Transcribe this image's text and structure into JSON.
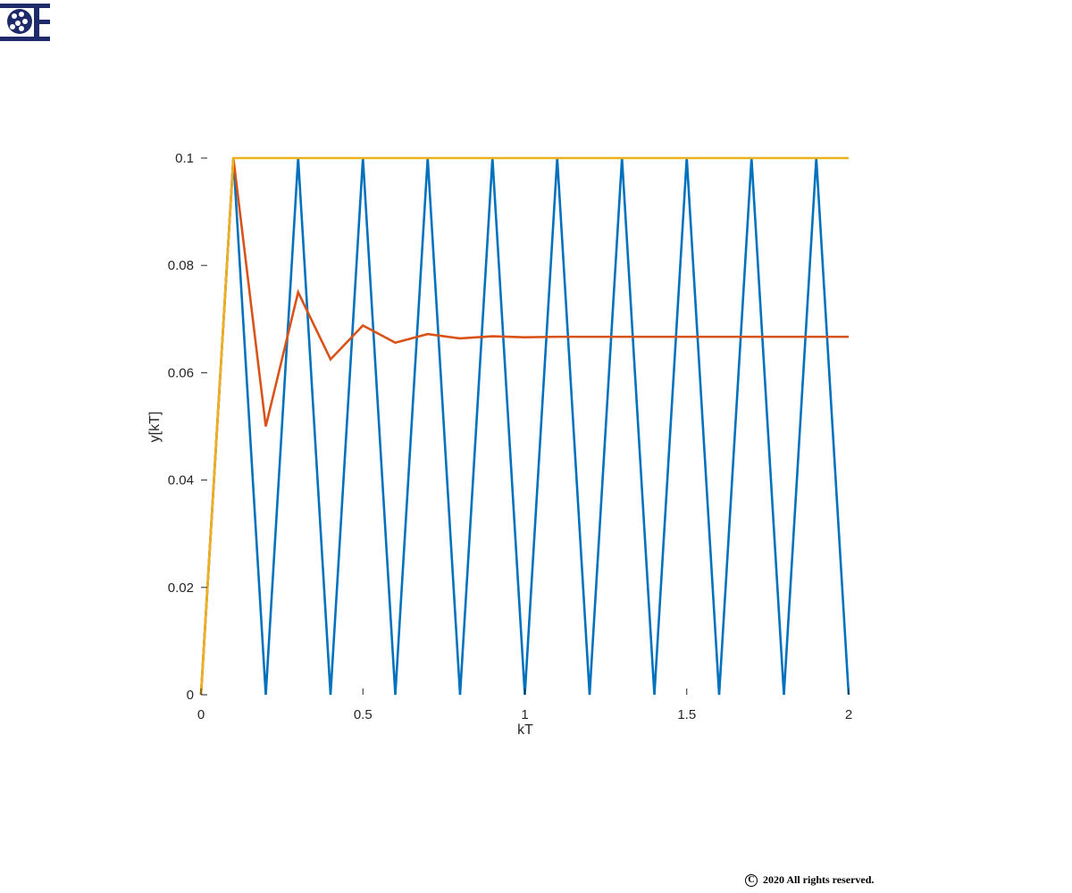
{
  "logo": {
    "name": "logo-icon",
    "color": "#1f2a6b"
  },
  "footer": {
    "icon": "copyright-icon",
    "icon_glyph": "C",
    "text": "2020 All rights reserved."
  },
  "chart_data": {
    "type": "line",
    "xlabel": "kT",
    "ylabel": "y[kT]",
    "xlim": [
      0,
      2
    ],
    "ylim": [
      0,
      0.1
    ],
    "x_ticks": [
      0,
      0.5,
      1,
      1.5,
      2
    ],
    "x_tick_labels": [
      "0",
      "0.5",
      "1",
      "1.5",
      "2"
    ],
    "y_ticks": [
      0,
      0.02,
      0.04,
      0.06,
      0.08,
      0.1
    ],
    "y_tick_labels": [
      "0",
      "0.02",
      "0.04",
      "0.06",
      "0.08",
      "0.1"
    ],
    "grid": false,
    "box": false,
    "series": [
      {
        "color": "#0072BD",
        "x": [
          0,
          0.1,
          0.2,
          0.3,
          0.4,
          0.5,
          0.6,
          0.7,
          0.8,
          0.9,
          1.0,
          1.1,
          1.2,
          1.3,
          1.4,
          1.5,
          1.6,
          1.7,
          1.8,
          1.9,
          2.0
        ],
        "y": [
          0,
          0.1,
          0,
          0.1,
          0,
          0.1,
          0,
          0.1,
          0,
          0.1,
          0,
          0.1,
          0,
          0.1,
          0,
          0.1,
          0,
          0.1,
          0,
          0.1,
          0
        ]
      },
      {
        "color": "#D95319",
        "x": [
          0,
          0.1,
          0.2,
          0.3,
          0.4,
          0.5,
          0.6,
          0.7,
          0.8,
          0.9,
          1.0,
          1.1,
          1.2,
          1.3,
          1.4,
          1.5,
          1.6,
          1.7,
          1.8,
          1.9,
          2.0
        ],
        "y": [
          0,
          0.1,
          0.05,
          0.075,
          0.0625,
          0.0688,
          0.0656,
          0.0672,
          0.0664,
          0.0668,
          0.0666,
          0.0667,
          0.0667,
          0.0667,
          0.0667,
          0.0667,
          0.0667,
          0.0667,
          0.0667,
          0.0667,
          0.0667
        ]
      },
      {
        "color": "#EDB120",
        "x": [
          0,
          0.1,
          0.2,
          0.3,
          0.4,
          0.5,
          0.6,
          0.7,
          0.8,
          0.9,
          1.0,
          1.1,
          1.2,
          1.3,
          1.4,
          1.5,
          1.6,
          1.7,
          1.8,
          1.9,
          2.0
        ],
        "y": [
          0,
          0.1,
          0.1,
          0.1,
          0.1,
          0.1,
          0.1,
          0.1,
          0.1,
          0.1,
          0.1,
          0.1,
          0.1,
          0.1,
          0.1,
          0.1,
          0.1,
          0.1,
          0.1,
          0.1,
          0.1
        ]
      }
    ]
  }
}
